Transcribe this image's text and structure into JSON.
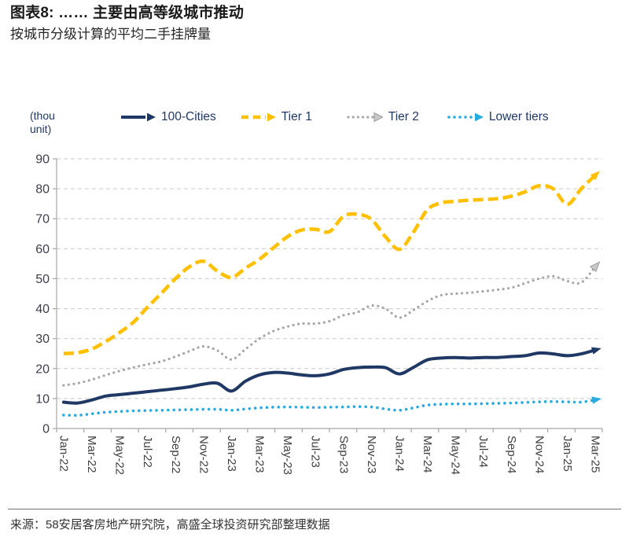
{
  "header": {
    "title": "图表8: …… 主要由高等级城市推动",
    "subtitle": "按城市分级计算的平均二手挂牌量"
  },
  "footer": {
    "source": "来源：58安居客房地产研究院，高盛全球投资研究部整理数据"
  },
  "colors": {
    "navy": "#1F3864",
    "gold": "#FFC000",
    "gray": "#A6A6A6",
    "light_blue": "#29ABE2",
    "gridline": "#c9c9c9",
    "axis": "#a6a6a6",
    "tick_text": "#404040"
  },
  "chart_data": {
    "type": "line",
    "unit_label_lines": [
      "(thou",
      "unit)"
    ],
    "legend_position": "top",
    "grid": "horizontal-dashed",
    "ylim": [
      0,
      90
    ],
    "ytick_step": 10,
    "xtick_every": 2,
    "categories": [
      "Jan-22",
      "Feb-22",
      "Mar-22",
      "Apr-22",
      "May-22",
      "Jun-22",
      "Jul-22",
      "Aug-22",
      "Sep-22",
      "Oct-22",
      "Nov-22",
      "Dec-22",
      "Jan-23",
      "Feb-23",
      "Mar-23",
      "Apr-23",
      "May-23",
      "Jun-23",
      "Jul-23",
      "Aug-23",
      "Sep-23",
      "Oct-23",
      "Nov-23",
      "Dec-23",
      "Jan-24",
      "Feb-24",
      "Mar-24",
      "Apr-24",
      "May-24",
      "Jun-24",
      "Jul-24",
      "Aug-24",
      "Sep-24",
      "Oct-24",
      "Nov-24",
      "Dec-24",
      "Jan-25",
      "Feb-25",
      "Mar-25"
    ],
    "series": [
      {
        "name": "100-Cities",
        "color": "#1F3864",
        "line_style": "solid",
        "width": 4,
        "arrow": "filled",
        "values": [
          8.8,
          8.5,
          9.5,
          10.8,
          11.3,
          11.8,
          12.3,
          12.8,
          13.3,
          13.9,
          14.8,
          15.1,
          12.5,
          15.8,
          17.9,
          18.7,
          18.5,
          17.9,
          17.6,
          18.2,
          19.7,
          20.3,
          20.5,
          20.3,
          18.2,
          20.4,
          22.9,
          23.5,
          23.7,
          23.5,
          23.7,
          23.7,
          24.0,
          24.3,
          25.2,
          24.9,
          24.3,
          24.9,
          26.2
        ]
      },
      {
        "name": "Tier 1",
        "color": "#FFC000",
        "line_style": "dashed",
        "width": 4.5,
        "arrow": "filled",
        "values": [
          25.0,
          25.3,
          26.5,
          29.0,
          32.0,
          35.5,
          40.5,
          45.2,
          50.0,
          54.0,
          55.8,
          52.5,
          50.4,
          53.5,
          56.5,
          60.3,
          64.0,
          66.2,
          66.5,
          65.7,
          70.8,
          71.5,
          69.8,
          64.0,
          59.8,
          65.5,
          73.0,
          75.3,
          75.8,
          76.2,
          76.4,
          76.7,
          77.5,
          79.0,
          81.0,
          80.0,
          74.8,
          80.0,
          84.5
        ]
      },
      {
        "name": "Tier 2",
        "color": "#A6A6A6",
        "line_style": "dotted",
        "width": 3.2,
        "arrow": "open",
        "values": [
          14.4,
          15.1,
          16.3,
          17.8,
          19.2,
          20.4,
          21.4,
          22.4,
          24.0,
          25.8,
          27.4,
          26.0,
          23.0,
          26.5,
          30.0,
          32.5,
          34.0,
          35.0,
          35.0,
          35.8,
          37.8,
          38.8,
          41.0,
          40.0,
          37.0,
          39.5,
          42.5,
          44.5,
          45.0,
          45.3,
          45.8,
          46.3,
          47.0,
          48.5,
          50.0,
          50.8,
          49.2,
          48.7,
          54.0
        ]
      },
      {
        "name": "Lower tiers",
        "color": "#29ABE2",
        "line_style": "dotted",
        "width": 3.6,
        "arrow": "filled",
        "values": [
          4.5,
          4.4,
          4.9,
          5.4,
          5.7,
          5.9,
          6.0,
          6.1,
          6.2,
          6.3,
          6.4,
          6.4,
          6.1,
          6.5,
          6.9,
          7.1,
          7.2,
          7.1,
          7.0,
          7.1,
          7.2,
          7.3,
          7.2,
          6.5,
          6.1,
          6.9,
          7.8,
          8.1,
          8.2,
          8.2,
          8.3,
          8.4,
          8.5,
          8.7,
          8.9,
          9.0,
          8.9,
          8.8,
          9.6
        ]
      }
    ]
  }
}
